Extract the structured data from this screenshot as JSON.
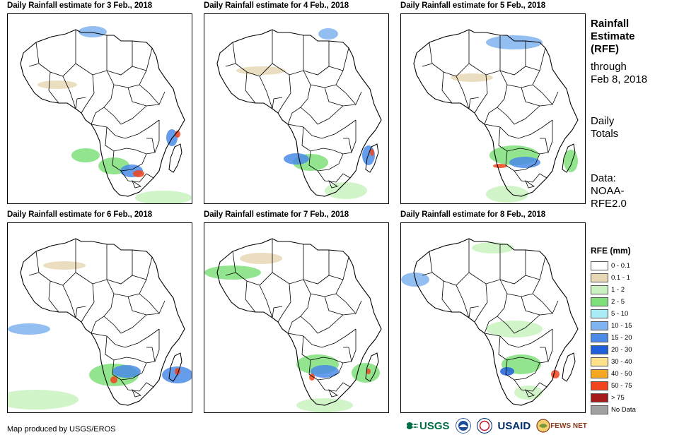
{
  "panels": [
    {
      "title": "Daily Rainfall estimate for 3 Feb., 2018"
    },
    {
      "title": "Daily Rainfall estimate for 4 Feb., 2018"
    },
    {
      "title": "Daily Rainfall estimate for 5 Feb., 2018"
    },
    {
      "title": "Daily Rainfall estimate for 6 Feb., 2018"
    },
    {
      "title": "Daily Rainfall estimate for 7 Feb., 2018"
    },
    {
      "title": "Daily Rainfall estimate for 8 Feb., 2018"
    }
  ],
  "side": {
    "title_lines": [
      "Rainfall",
      "Estimate",
      "(RFE)"
    ],
    "through_lines": [
      "through",
      "Feb 8, 2018"
    ],
    "totals_lines": [
      "Daily",
      "Totals"
    ],
    "data_lines": [
      "Data:",
      "NOAA-",
      "RFE2.0"
    ]
  },
  "legend": {
    "title": "RFE (mm)",
    "items": [
      {
        "label": "0 - 0.1",
        "color": "#ffffff"
      },
      {
        "label": "0.1 - 1",
        "color": "#e8d7b4"
      },
      {
        "label": "1 - 2",
        "color": "#c9f2c0"
      },
      {
        "label": "2 - 5",
        "color": "#7fe07a"
      },
      {
        "label": "5 - 10",
        "color": "#a9ecf5"
      },
      {
        "label": "10 - 15",
        "color": "#7fb3f0"
      },
      {
        "label": "15 - 20",
        "color": "#4a8be8"
      },
      {
        "label": "20 - 30",
        "color": "#1f5fd9"
      },
      {
        "label": "30 - 40",
        "color": "#ffe28a"
      },
      {
        "label": "40 - 50",
        "color": "#f5a623"
      },
      {
        "label": "50 - 75",
        "color": "#f0441c"
      },
      {
        "label": "> 75",
        "color": "#a51c1c"
      },
      {
        "label": "No Data",
        "color": "#a0a0a0"
      }
    ]
  },
  "credit": "Map produced by USGS/EROS",
  "logos": {
    "usgs": "USGS",
    "usaid": "USAID",
    "fews": "FEWS NET"
  }
}
